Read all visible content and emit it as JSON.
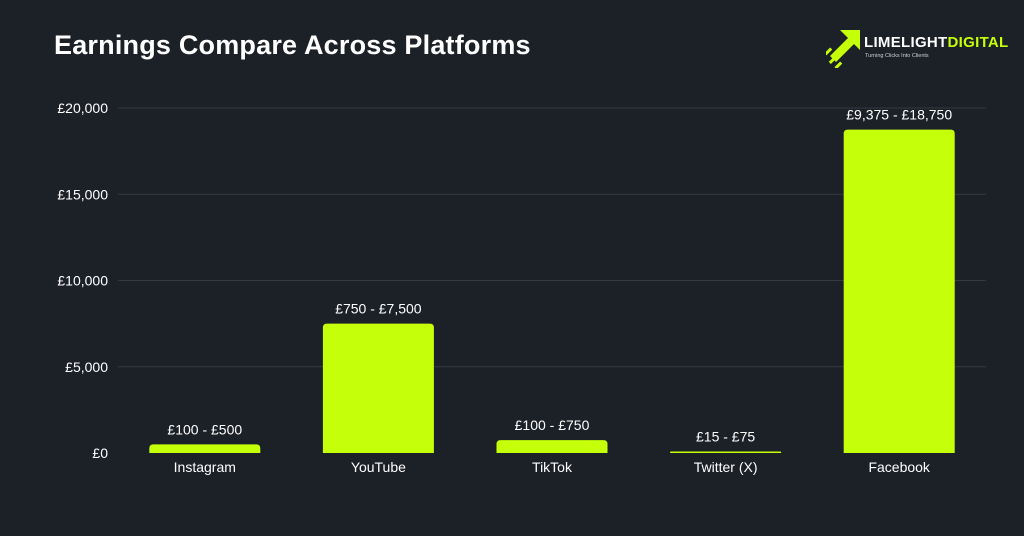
{
  "header": {
    "title": "Earnings Compare Across Platforms"
  },
  "logo": {
    "word1": "LIMELIGHT",
    "word2": "DIGITAL",
    "tagline": "Turning Clicks Into Clients",
    "icon": "rocket-arrow-icon"
  },
  "colors": {
    "background": "#1c2027",
    "bar": "#c6ff0a",
    "grid": "#343a43"
  },
  "chart_data": {
    "type": "bar",
    "title": "Earnings Compare Across Platforms",
    "categories": [
      "Instagram",
      "YouTube",
      "TikTok",
      "Twitter (X)",
      "Facebook"
    ],
    "values": [
      500,
      7500,
      750,
      75,
      18750
    ],
    "ranges": [
      [
        100,
        500
      ],
      [
        750,
        7500
      ],
      [
        100,
        750
      ],
      [
        15,
        75
      ],
      [
        9375,
        18750
      ]
    ],
    "data_labels": [
      "£100 - £500",
      "£750 - £7,500",
      "£100 - £750",
      "£15 - £75",
      "£9,375 - £18,750"
    ],
    "y_ticks": [
      0,
      5000,
      10000,
      15000,
      20000
    ],
    "y_tick_labels": [
      "£0",
      "£5,000",
      "£10,000",
      "£15,000",
      "£20,000"
    ],
    "ylim": [
      0,
      20000
    ],
    "grid": true
  }
}
